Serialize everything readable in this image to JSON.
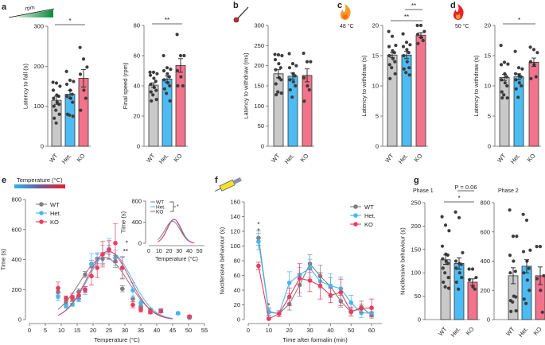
{
  "labels": {
    "a": "a",
    "b": "b",
    "c": "c",
    "d": "d",
    "e": "e",
    "f": "f",
    "g": "g",
    "rpm": "rpm",
    "temp48": "48 °C",
    "temp50": "50 °C",
    "colorbar": "Temperature (°C)",
    "phase1": "Phase 1",
    "phase2": "Phase 2"
  },
  "colors": {
    "WT": "#c9c9c9",
    "Het": "#4dbcf4",
    "KO": "#f2738c",
    "WT_line": "#7f7f7f",
    "Het_line": "#45b8f2",
    "KO_line": "#ef3a5d",
    "dots": "#3d3d3d"
  },
  "chart_data": [
    {
      "id": "a1",
      "type": "bar",
      "categories": [
        "WT",
        "Het.",
        "KO"
      ],
      "ylabel": "Latency to fall (s)",
      "ylim": [
        0,
        300
      ],
      "yticks": [
        0,
        100,
        200,
        300
      ],
      "means": [
        115,
        130,
        170
      ],
      "sem": [
        10,
        10,
        22
      ],
      "points": [
        [
          160,
          158,
          150,
          140,
          128,
          125,
          120,
          110,
          105,
          100,
          90,
          80,
          70,
          58
        ],
        [
          187,
          165,
          162,
          155,
          140,
          130,
          125,
          120,
          110,
          80,
          78,
          75
        ],
        [
          247,
          218,
          198,
          180,
          140,
          120,
          90
        ]
      ],
      "sig": [
        {
          "from": 0,
          "to": 2,
          "label": "*"
        }
      ]
    },
    {
      "id": "a2",
      "type": "bar",
      "categories": [
        "WT",
        "Het.",
        "KO"
      ],
      "ylabel": "Final speed (rpm)",
      "ylim": [
        0,
        80
      ],
      "yticks": [
        0,
        20,
        40,
        60,
        80
      ],
      "means": [
        40.5,
        44.5,
        53.5
      ],
      "sem": [
        1.5,
        2,
        4.5
      ],
      "points": [
        [
          49,
          49,
          48,
          47,
          45,
          43,
          41,
          39,
          37,
          36,
          34,
          31,
          30
        ],
        [
          60,
          52,
          51,
          50,
          48,
          46,
          44,
          42,
          40,
          38,
          35,
          30
        ],
        [
          74,
          60,
          60,
          50,
          46,
          40,
          40
        ]
      ],
      "sig": [
        {
          "from": 0,
          "to": 2,
          "label": "**"
        }
      ]
    },
    {
      "id": "b",
      "type": "bar",
      "categories": [
        "WT",
        "Het.",
        "KO"
      ],
      "ylabel": "Latency to withdraw (ms)",
      "ylim": [
        0,
        300
      ],
      "yticks": [
        0,
        50,
        100,
        150,
        200,
        250,
        300
      ],
      "means": [
        180,
        174,
        176
      ],
      "sem": [
        10,
        8,
        16
      ],
      "points": [
        [
          228,
          227,
          225,
          215,
          205,
          195,
          190,
          170,
          165,
          155,
          135,
          132,
          128
        ],
        [
          230,
          205,
          200,
          195,
          180,
          175,
          165,
          160,
          150,
          140,
          122
        ],
        [
          231,
          210,
          210,
          170,
          150,
          140,
          112
        ]
      ],
      "sig": []
    },
    {
      "id": "c",
      "type": "bar",
      "categories": [
        "WT",
        "Het.",
        "KO"
      ],
      "ylabel": "Latency to withdraw (s)",
      "ylim": [
        0,
        20
      ],
      "yticks": [
        0,
        5,
        10,
        15,
        20
      ],
      "means": [
        15.1,
        15.1,
        18.4
      ],
      "sem": [
        0.4,
        0.6,
        0.4
      ],
      "points": [
        [
          19,
          18.2,
          16.7,
          16.5,
          15.8,
          15.5,
          15,
          14.5,
          14,
          13.5,
          13,
          12,
          11.2
        ],
        [
          18.6,
          17.2,
          16.8,
          16.5,
          16,
          15.5,
          15,
          14,
          13,
          12.8,
          12.2,
          11.8
        ],
        [
          20,
          20,
          19,
          18.5,
          18,
          17.5,
          17
        ]
      ],
      "sig": [
        {
          "from": 0,
          "to": 2,
          "label": "**"
        },
        {
          "from": 1,
          "to": 2,
          "label": "**"
        }
      ]
    },
    {
      "id": "d",
      "type": "bar",
      "categories": [
        "WT",
        "Het.",
        "KO"
      ],
      "ylabel": "Latency to withdraw (s)",
      "ylim": [
        0,
        20
      ],
      "yticks": [
        0,
        5,
        10,
        15,
        20
      ],
      "means": [
        11.4,
        11.5,
        13.9
      ],
      "sem": [
        0.5,
        0.5,
        0.7
      ],
      "points": [
        [
          16.7,
          13.9,
          13.6,
          13.5,
          12,
          11.5,
          11,
          10.5,
          10,
          9,
          8.5,
          8,
          8
        ],
        [
          15.7,
          13,
          12.8,
          12,
          11.8,
          11.5,
          11,
          10.5,
          10,
          9.5,
          8.1
        ],
        [
          16.4,
          16,
          15.5,
          14,
          13.5,
          11.5,
          11.2
        ]
      ],
      "sig": [
        {
          "from": 0,
          "to": 2,
          "label": "*"
        }
      ]
    },
    {
      "id": "e",
      "type": "line",
      "xlabel": "Temperature (°C)",
      "ylabel": "Time (s)",
      "xlim": [
        0,
        55
      ],
      "ylim": [
        0,
        800
      ],
      "xticks": [
        0,
        5,
        10,
        15,
        20,
        25,
        30,
        35,
        40,
        45,
        50,
        55
      ],
      "yticks": [
        0,
        200,
        400,
        600,
        800
      ],
      "legend": "top-left",
      "x": [
        9,
        11.5,
        13.5,
        15.5,
        17.5,
        19.5,
        21.3,
        23,
        25,
        27,
        29.2,
        32.5,
        35,
        38,
        41.3,
        46.7,
        50.3
      ],
      "series": [
        {
          "name": "WT",
          "values": [
            185,
            115,
            140,
            185,
            300,
            370,
            405,
            405,
            465,
            388,
            205,
            138,
            88,
            65,
            62,
            42,
            12
          ],
          "err": [
            25,
            15,
            20,
            20,
            20,
            25,
            30,
            40,
            30,
            40,
            20,
            20,
            15,
            10,
            10,
            8,
            5
          ],
          "fit": {
            "peak": 415,
            "center": 23.5,
            "sd": 7.6
          }
        },
        {
          "name": "Het.",
          "values": [
            152,
            88,
            100,
            135,
            193,
            365,
            405,
            435,
            470,
            412,
            345,
            195,
            112,
            null,
            60,
            42,
            15
          ],
          "err": [
            25,
            10,
            10,
            15,
            25,
            75,
            40,
            60,
            70,
            50,
            75,
            50,
            20,
            0,
            10,
            8,
            5
          ],
          "fit": {
            "peak": 450,
            "center": 25.3,
            "sd": 6.9
          }
        },
        {
          "name": "KO",
          "values": [
            210,
            143,
            150,
            160,
            200,
            290,
            345,
            435,
            465,
            510,
            345,
            98,
            65,
            48,
            55,
            null,
            20
          ],
          "err": [
            40,
            15,
            25,
            20,
            20,
            60,
            65,
            85,
            60,
            130,
            70,
            20,
            15,
            10,
            10,
            0,
            8
          ],
          "fit": {
            "peak": 455,
            "center": 24.8,
            "sd": 6.7
          }
        }
      ],
      "annotations": [
        "*",
        "**"
      ],
      "inset": {
        "xlabel": "Temperature (°C)",
        "ylabel": "Time (s)",
        "xlim": [
          0,
          55
        ],
        "ylim": [
          0,
          800
        ],
        "xticks": [
          0,
          10,
          20,
          30,
          40,
          50
        ],
        "yticks": [
          0,
          400,
          800
        ],
        "legend": [
          "WT",
          "Het.",
          "KO"
        ],
        "sig": "*"
      }
    },
    {
      "id": "f",
      "type": "line",
      "xlabel": "Time after formalin (min)",
      "ylabel": "Nocifensive behaviour (s)",
      "xlim": [
        0,
        65
      ],
      "ylim": [
        0,
        160
      ],
      "xticks": [
        0,
        10,
        20,
        30,
        40,
        50,
        60
      ],
      "yticks": [
        0,
        20,
        40,
        60,
        80,
        100,
        120,
        140,
        160
      ],
      "legend": "top-right",
      "x": [
        5,
        10,
        15,
        20,
        25,
        30,
        35,
        40,
        45,
        50,
        55,
        60
      ],
      "series": [
        {
          "name": "WT",
          "values": [
            111,
            11,
            8,
            21,
            47,
            76,
            59,
            45,
            25,
            10,
            17,
            6
          ],
          "err": [
            10,
            5,
            4,
            8,
            15,
            12,
            15,
            12,
            8,
            5,
            8,
            4
          ]
        },
        {
          "name": "Het.",
          "values": [
            106,
            10,
            8,
            50,
            61,
            70,
            52,
            46,
            42,
            23,
            9,
            9
          ],
          "err": [
            11,
            5,
            4,
            15,
            10,
            12,
            10,
            16,
            16,
            10,
            6,
            5
          ]
        },
        {
          "name": "KO",
          "values": [
            73,
            1,
            8,
            31,
            56,
            53,
            46,
            33,
            37,
            11,
            15,
            16
          ],
          "err": [
            5,
            2,
            4,
            12,
            20,
            15,
            18,
            10,
            18,
            6,
            6,
            12
          ]
        }
      ],
      "annotations": [
        {
          "x": 5,
          "label": "*"
        },
        {
          "x": 5,
          "label": "*"
        },
        {
          "x": 10,
          "label": "*"
        }
      ]
    },
    {
      "id": "g1",
      "type": "bar",
      "title": "Phase 1",
      "categories": [
        "WT",
        "Het.",
        "KO"
      ],
      "ylabel": "Nocifensive behaviour (s)",
      "ylim": [
        0,
        250
      ],
      "yticks": [
        0,
        50,
        100,
        150,
        200,
        250
      ],
      "means": [
        128,
        120,
        80
      ],
      "sem": [
        10,
        12,
        7
      ],
      "points": [
        [
          220,
          202,
          190,
          157,
          140,
          138,
          130,
          125,
          120,
          110,
          100,
          90,
          80,
          70,
          67
        ],
        [
          230,
          218,
          143,
          125,
          120,
          118,
          110,
          100,
          90,
          80,
          65
        ],
        [
          108,
          108,
          90,
          85,
          70,
          65
        ]
      ],
      "sig": [
        {
          "from": 0,
          "to": 2,
          "label": "*"
        },
        {
          "from": 1,
          "to": 2,
          "label": "P = 0.06"
        }
      ]
    },
    {
      "id": "g2",
      "type": "bar",
      "title": "Phase 2",
      "categories": [
        "WT",
        "Het.",
        "KO"
      ],
      "ylabel": "",
      "ylim": [
        0,
        800
      ],
      "yticks": [
        0,
        200,
        400,
        600,
        800
      ],
      "means": [
        300,
        365,
        300
      ],
      "sem": [
        55,
        45,
        60
      ],
      "points": [
        [
          750,
          570,
          570,
          440,
          400,
          330,
          320,
          160,
          155,
          130,
          120,
          60,
          55
        ],
        [
          720,
          680,
          475,
          465,
          400,
          350,
          320,
          270,
          200,
          140,
          110
        ],
        [
          500,
          500,
          300,
          280,
          200,
          50
        ]
      ],
      "sig": []
    }
  ]
}
